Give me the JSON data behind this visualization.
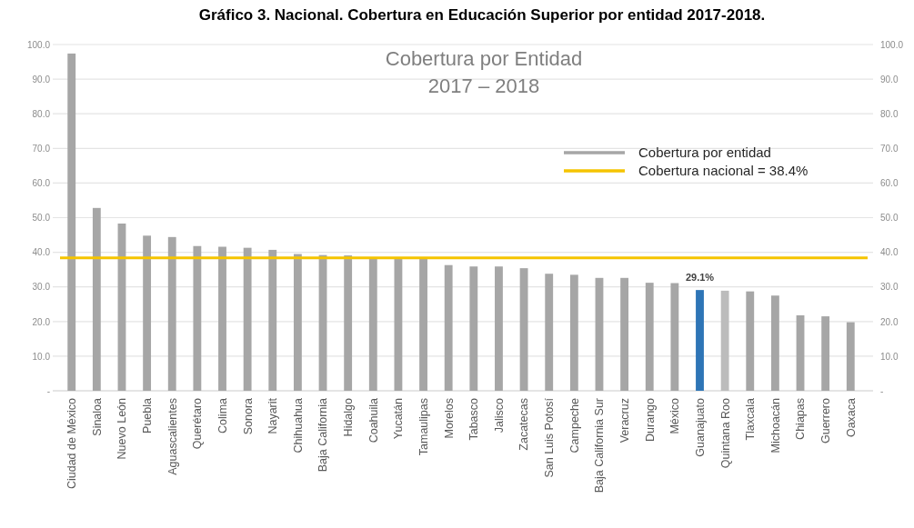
{
  "chart_data": {
    "type": "bar",
    "title": "Gráfico 3. Nacional. Cobertura en Educación Superior por entidad 2017-2018.",
    "subtitle": "Cobertura por Entidad\n2017 – 2018",
    "categories": [
      "Ciudad de México",
      "Sinaloa",
      "Nuevo León",
      "Puebla",
      "Aguascalientes",
      "Querétaro",
      "Colima",
      "Sonora",
      "Nayarit",
      "Chihuahua",
      "Baja California",
      "Hidalgo",
      "Coahuila",
      "Yucatán",
      "Tamaulipas",
      "Morelos",
      "Tabasco",
      "Jalisco",
      "Zacatecas",
      "San Luis Potosí",
      "Campeche",
      "Baja California Sur",
      "Veracruz",
      "Durango",
      "México",
      "Guanajuato",
      "Quintana Roo",
      "Tlaxcala",
      "Michoacán",
      "Chiapas",
      "Guerrero",
      "Oaxaca"
    ],
    "series": [
      {
        "name": "Cobertura por entidad",
        "color": "#a6a6a6",
        "values": [
          97.4,
          52.8,
          48.3,
          44.8,
          44.4,
          41.8,
          41.6,
          41.3,
          40.7,
          39.5,
          39.2,
          39.1,
          38.3,
          38.3,
          38.3,
          36.3,
          35.9,
          35.9,
          35.4,
          33.8,
          33.5,
          32.6,
          32.6,
          31.2,
          31.1,
          29.1,
          28.9,
          28.7,
          27.5,
          21.8,
          21.5,
          19.8
        ],
        "colors": [
          "#a6a6a6",
          "#a6a6a6",
          "#a6a6a6",
          "#a6a6a6",
          "#a6a6a6",
          "#a6a6a6",
          "#a6a6a6",
          "#a6a6a6",
          "#a6a6a6",
          "#a6a6a6",
          "#a6a6a6",
          "#a6a6a6",
          "#a6a6a6",
          "#a6a6a6",
          "#a6a6a6",
          "#a6a6a6",
          "#a6a6a6",
          "#a6a6a6",
          "#a6a6a6",
          "#a6a6a6",
          "#a6a6a6",
          "#a6a6a6",
          "#a6a6a6",
          "#a6a6a6",
          "#a6a6a6",
          "#2e75b6",
          "#bcbcbc",
          "#a6a6a6",
          "#a6a6a6",
          "#a6a6a6",
          "#a6a6a6",
          "#a6a6a6"
        ],
        "value_labels": [
          null,
          null,
          null,
          null,
          null,
          null,
          null,
          null,
          null,
          null,
          null,
          null,
          null,
          null,
          null,
          null,
          null,
          null,
          null,
          null,
          null,
          null,
          null,
          null,
          null,
          "29.1%",
          null,
          null,
          null,
          null,
          null,
          null
        ]
      }
    ],
    "ylim": [
      0,
      100
    ],
    "yticks": [
      {
        "value": 0,
        "label": "-"
      },
      {
        "value": 10,
        "label": "10.0"
      },
      {
        "value": 20,
        "label": "20.0"
      },
      {
        "value": 30,
        "label": "30.0"
      },
      {
        "value": 40,
        "label": "40.0"
      },
      {
        "value": 50,
        "label": "50.0"
      },
      {
        "value": 60,
        "label": "60.0"
      },
      {
        "value": 70,
        "label": "70.0"
      },
      {
        "value": 80,
        "label": "80.0"
      },
      {
        "value": 90,
        "label": "90.0"
      },
      {
        "value": 100,
        "label": "100.0"
      }
    ],
    "y2lim": [
      0,
      100
    ],
    "y2ticks": [
      {
        "value": 0,
        "label": "-"
      },
      {
        "value": 10,
        "label": "10.0"
      },
      {
        "value": 20,
        "label": "20.0"
      },
      {
        "value": 30,
        "label": "30.0"
      },
      {
        "value": 40,
        "label": "40.0"
      },
      {
        "value": 50,
        "label": "50.0"
      },
      {
        "value": 60,
        "label": "60.0"
      },
      {
        "value": 70,
        "label": "70.0"
      },
      {
        "value": 80,
        "label": "80.0"
      },
      {
        "value": 90,
        "label": "90.0"
      },
      {
        "value": 100,
        "label": "100.0"
      }
    ],
    "ref_lines": [
      {
        "axis": "y",
        "value": 38.4,
        "label": "Cobertura nacional = 38.4%",
        "color": "#f5c400"
      }
    ],
    "grid": "y",
    "legend": "top right"
  }
}
